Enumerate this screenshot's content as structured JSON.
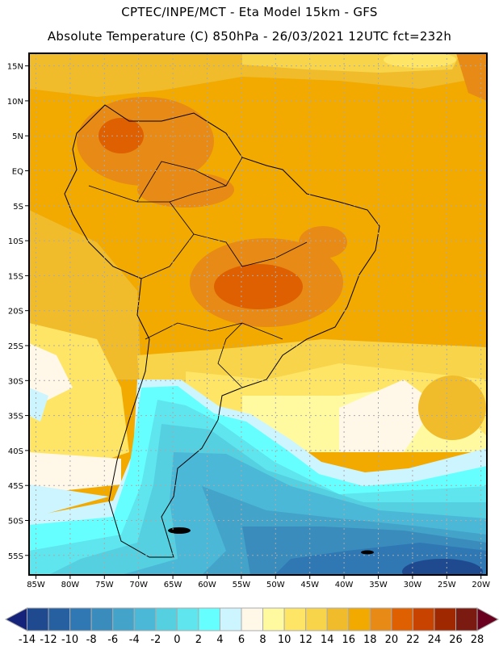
{
  "header": {
    "title_line1": "CPTEC/INPE/MCT -  Eta Model 15km - GFS",
    "title_line2": "Absolute Temperature (C) 850hPa - 26/03/2021 12UTC fct=232h"
  },
  "map": {
    "lat_labels": [
      "15N",
      "10N",
      "5N",
      "EQ",
      "5S",
      "10S",
      "15S",
      "20S",
      "25S",
      "30S",
      "35S",
      "40S",
      "45S",
      "50S",
      "55S"
    ],
    "lon_labels": [
      "85W",
      "80W",
      "75W",
      "70W",
      "65W",
      "60W",
      "55W",
      "50W",
      "45W",
      "40W",
      "35W",
      "30W",
      "25W",
      "20W"
    ]
  },
  "colorbar": {
    "labels": [
      "-14",
      "-12",
      "-10",
      "-8",
      "-6",
      "-4",
      "-2",
      "0",
      "2",
      "4",
      "6",
      "8",
      "10",
      "12",
      "14",
      "16",
      "18",
      "20",
      "22",
      "24",
      "26",
      "28"
    ],
    "low_arrow_color": "#15237a",
    "high_arrow_color": "#6a0020",
    "colors": [
      "#1f4a8f",
      "#2760a0",
      "#2f78b4",
      "#3a8cbd",
      "#43a3c8",
      "#4bb8d8",
      "#55d0e0",
      "#5ee5ee",
      "#66ffff",
      "#ccf5ff",
      "#fff8e8",
      "#fffaa0",
      "#ffe566",
      "#f8d44a",
      "#f0bc2c",
      "#f2a900",
      "#e88a16",
      "#de6000",
      "#c84200",
      "#a02800",
      "#7a1a10"
    ]
  }
}
